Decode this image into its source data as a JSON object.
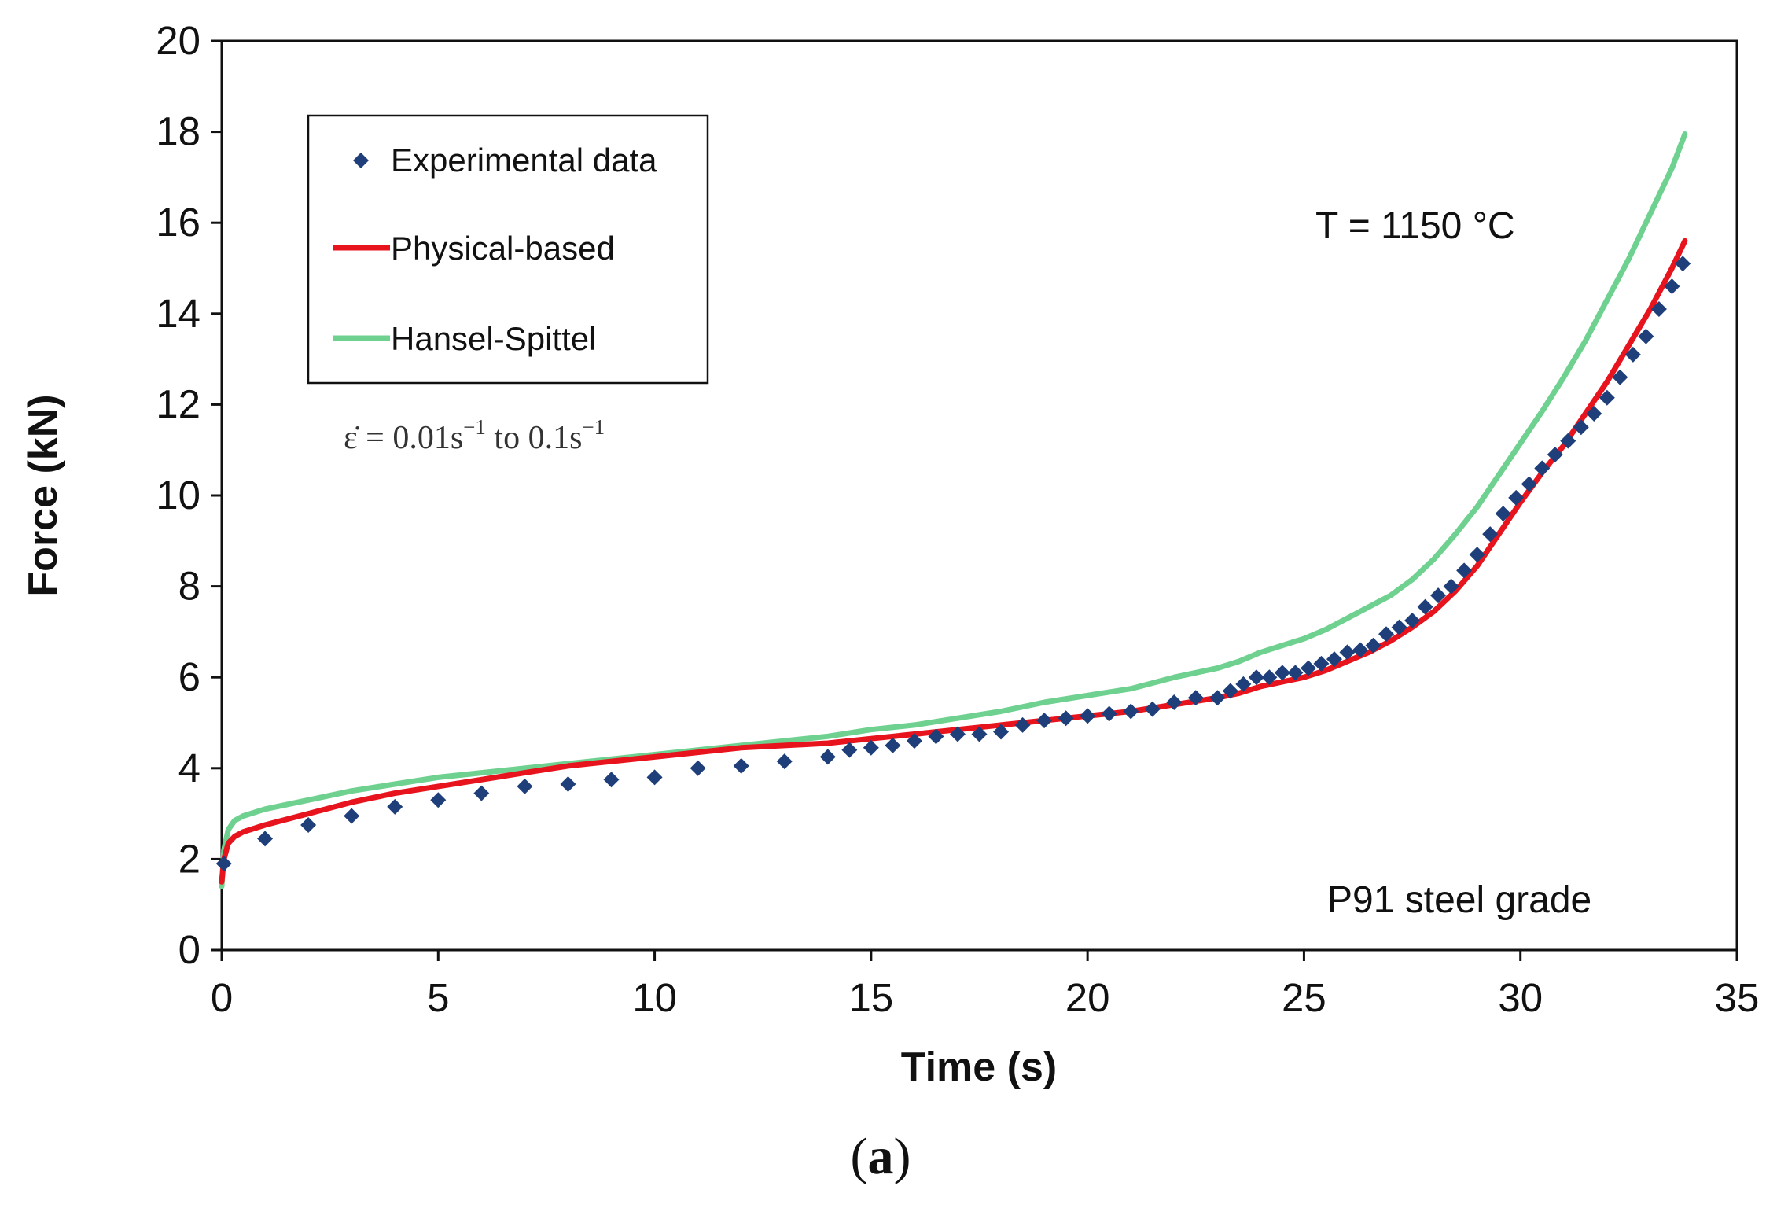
{
  "chart_data": {
    "type": "line",
    "title": "",
    "xlabel": "Time (s)",
    "ylabel": "Force  (kN)",
    "xlim": [
      0,
      35
    ],
    "ylim": [
      0,
      20
    ],
    "xticks": [
      0,
      5,
      10,
      15,
      20,
      25,
      30,
      35
    ],
    "yticks": [
      0,
      2,
      4,
      6,
      8,
      10,
      12,
      14,
      16,
      18,
      20
    ],
    "grid": false,
    "legend_position": "top-left",
    "annotations": {
      "temperature": "T  =  1150 °C",
      "material": "P91  steel  grade",
      "strain_rate_lhs": "ε̇ = 0.01s",
      "strain_rate_exp1": "−1",
      "strain_rate_mid": " to 0.1s",
      "strain_rate_exp2": "−1"
    },
    "caption_open": "(",
    "caption_letter": "a",
    "caption_close": ")",
    "series": [
      {
        "name": "Experimental data",
        "style": "diamond-markers",
        "color": "#1f3f7a",
        "x": [
          0.05,
          1,
          2,
          3,
          4,
          5,
          6,
          7,
          8,
          9,
          10,
          11,
          12,
          13,
          14,
          14.5,
          15,
          15.5,
          16,
          16.5,
          17,
          17.5,
          18,
          18.5,
          19,
          19.5,
          20,
          20.5,
          21,
          21.5,
          22,
          22.5,
          23,
          23.3,
          23.6,
          23.9,
          24.2,
          24.5,
          24.8,
          25.1,
          25.4,
          25.7,
          26,
          26.3,
          26.6,
          26.9,
          27.2,
          27.5,
          27.8,
          28.1,
          28.4,
          28.7,
          29,
          29.3,
          29.6,
          29.9,
          30.2,
          30.5,
          30.8,
          31.1,
          31.4,
          31.7,
          32,
          32.3,
          32.6,
          32.9,
          33.2,
          33.5,
          33.75
        ],
        "y": [
          1.9,
          2.45,
          2.75,
          2.95,
          3.15,
          3.3,
          3.45,
          3.6,
          3.65,
          3.75,
          3.8,
          4.0,
          4.05,
          4.15,
          4.25,
          4.4,
          4.45,
          4.5,
          4.6,
          4.7,
          4.75,
          4.75,
          4.8,
          4.95,
          5.05,
          5.1,
          5.15,
          5.2,
          5.25,
          5.3,
          5.45,
          5.55,
          5.55,
          5.7,
          5.85,
          6.0,
          6.0,
          6.1,
          6.1,
          6.2,
          6.3,
          6.4,
          6.55,
          6.6,
          6.7,
          6.95,
          7.1,
          7.25,
          7.55,
          7.8,
          8.0,
          8.35,
          8.7,
          9.15,
          9.6,
          9.95,
          10.25,
          10.6,
          10.9,
          11.2,
          11.5,
          11.8,
          12.15,
          12.6,
          13.1,
          13.5,
          14.1,
          14.6,
          15.1
        ]
      },
      {
        "name": "Physical-based",
        "style": "line",
        "color": "#e8141d",
        "x": [
          0,
          0.05,
          0.15,
          0.3,
          0.5,
          1,
          2,
          3,
          4,
          5,
          6,
          7,
          8,
          9,
          10,
          11,
          12,
          13,
          14,
          15,
          16,
          17,
          18,
          19,
          20,
          21,
          22,
          23,
          23.5,
          24,
          24.5,
          25,
          25.5,
          26,
          26.5,
          27,
          27.5,
          28,
          28.5,
          29,
          29.5,
          30,
          30.5,
          31,
          31.5,
          32,
          32.5,
          33,
          33.5,
          33.8
        ],
        "y": [
          1.5,
          2.0,
          2.35,
          2.5,
          2.6,
          2.75,
          3.0,
          3.25,
          3.45,
          3.6,
          3.75,
          3.9,
          4.05,
          4.15,
          4.25,
          4.35,
          4.45,
          4.5,
          4.55,
          4.65,
          4.75,
          4.85,
          4.95,
          5.05,
          5.15,
          5.25,
          5.4,
          5.55,
          5.65,
          5.8,
          5.9,
          6.0,
          6.15,
          6.35,
          6.55,
          6.8,
          7.1,
          7.45,
          7.9,
          8.45,
          9.15,
          9.85,
          10.5,
          11.1,
          11.8,
          12.5,
          13.3,
          14.1,
          15.0,
          15.6
        ]
      },
      {
        "name": "Hansel-Spittel",
        "style": "line",
        "color": "#6fd190",
        "x": [
          0,
          0.05,
          0.15,
          0.3,
          0.5,
          1,
          2,
          3,
          4,
          5,
          6,
          7,
          8,
          9,
          10,
          11,
          12,
          13,
          14,
          15,
          16,
          17,
          18,
          19,
          20,
          21,
          22,
          23,
          23.5,
          24,
          24.5,
          25,
          25.5,
          26,
          26.5,
          27,
          27.5,
          28,
          28.5,
          29,
          29.5,
          30,
          30.5,
          31,
          31.5,
          32,
          32.5,
          33,
          33.5,
          33.8
        ],
        "y": [
          1.4,
          2.2,
          2.65,
          2.85,
          2.95,
          3.1,
          3.3,
          3.5,
          3.65,
          3.8,
          3.9,
          4.0,
          4.1,
          4.2,
          4.3,
          4.4,
          4.5,
          4.6,
          4.7,
          4.85,
          4.95,
          5.1,
          5.25,
          5.45,
          5.6,
          5.75,
          6.0,
          6.2,
          6.35,
          6.55,
          6.7,
          6.85,
          7.05,
          7.3,
          7.55,
          7.8,
          8.15,
          8.6,
          9.15,
          9.75,
          10.45,
          11.15,
          11.85,
          12.6,
          13.4,
          14.3,
          15.2,
          16.2,
          17.2,
          17.95
        ]
      }
    ]
  }
}
